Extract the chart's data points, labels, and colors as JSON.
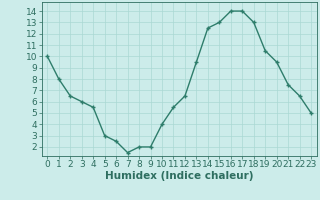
{
  "x": [
    0,
    1,
    2,
    3,
    4,
    5,
    6,
    7,
    8,
    9,
    10,
    11,
    12,
    13,
    14,
    15,
    16,
    17,
    18,
    19,
    20,
    21,
    22,
    23
  ],
  "y": [
    10,
    8,
    6.5,
    6,
    5.5,
    3,
    2.5,
    1.5,
    2,
    2,
    4,
    5.5,
    6.5,
    9.5,
    12.5,
    13,
    14,
    14,
    13,
    10.5,
    9.5,
    7.5,
    6.5,
    5
  ],
  "line_color": "#2e7d6b",
  "marker": "+",
  "bg_color": "#ccecea",
  "grid_color": "#aad8d4",
  "xlabel": "Humidex (Indice chaleur)",
  "xlim": [
    -0.5,
    23.5
  ],
  "ylim": [
    1.2,
    14.8
  ],
  "yticks": [
    2,
    3,
    4,
    5,
    6,
    7,
    8,
    9,
    10,
    11,
    12,
    13,
    14
  ],
  "xticks": [
    0,
    1,
    2,
    3,
    4,
    5,
    6,
    7,
    8,
    9,
    10,
    11,
    12,
    13,
    14,
    15,
    16,
    17,
    18,
    19,
    20,
    21,
    22,
    23
  ],
  "tick_color": "#2e6e60",
  "label_color": "#2e6e60",
  "font_size": 6.5,
  "xlabel_fontsize": 7.5,
  "linewidth": 1.0,
  "markersize": 3.5,
  "markeredgewidth": 1.0
}
